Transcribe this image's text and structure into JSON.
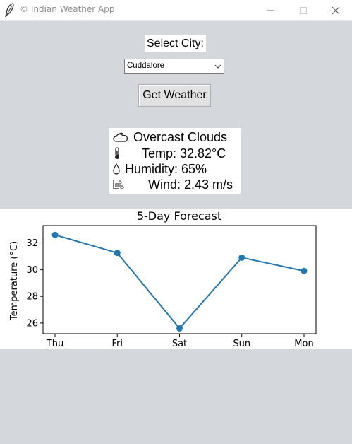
{
  "window": {
    "title": "Indian Weather App",
    "app_icon": "feather-icon",
    "controls": [
      "minimize-icon",
      "maximize-icon",
      "close-icon"
    ]
  },
  "city_selector": {
    "label": "Select City:",
    "selected": "Cuddalore"
  },
  "get_weather_button": {
    "label": "Get Weather"
  },
  "weather": {
    "condition": "Overcast Clouds",
    "temp": "Temp: 32.82°C",
    "humidity": "Humidity: 65%",
    "wind": "Wind: 2.43 m/s",
    "icons": {
      "condition": "cloud-icon",
      "temp": "thermometer-icon",
      "humidity": "droplet-icon",
      "wind": "wind-icon"
    }
  },
  "colors": {
    "window_bg": "#d4d8dc",
    "series_line": "#1f77b4"
  },
  "chart_data": {
    "type": "line",
    "title": "5-Day Forecast",
    "xlabel": "",
    "ylabel": "Temperature (°C)",
    "categories": [
      "Thu",
      "Fri",
      "Sat",
      "Sun",
      "Mon"
    ],
    "series": [
      {
        "values": [
          32.6,
          31.25,
          25.6,
          30.9,
          29.9
        ]
      }
    ],
    "ylim": [
      25.2,
      33.3
    ],
    "yticks": [
      26,
      28,
      30,
      32
    ],
    "grid": false,
    "legend": "none"
  }
}
